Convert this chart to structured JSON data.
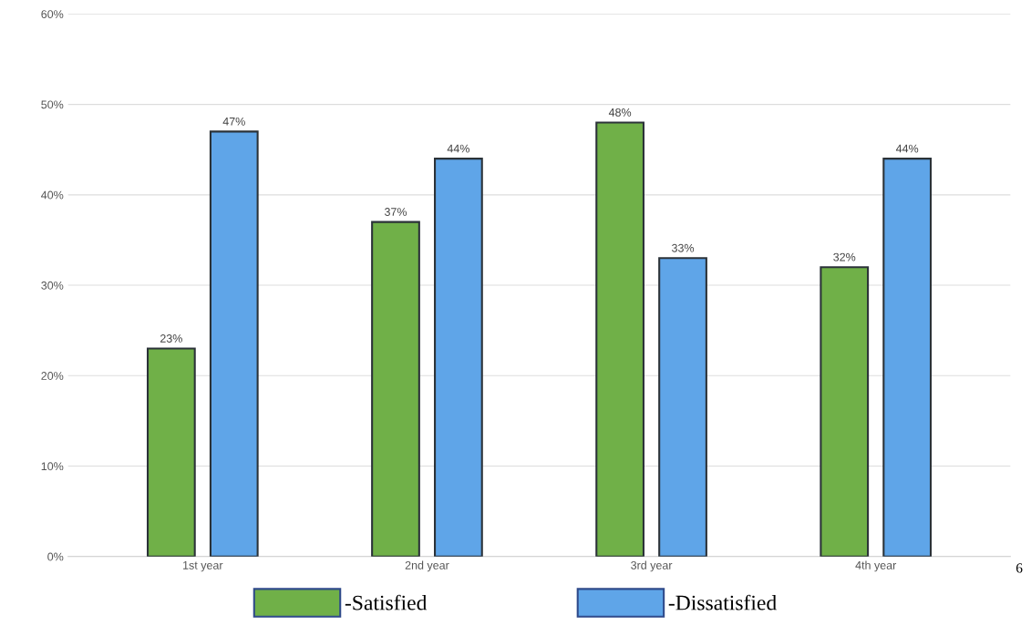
{
  "chart_data": {
    "type": "bar",
    "categories": [
      "1st year",
      "2nd year",
      "3rd year",
      "4th year"
    ],
    "series": [
      {
        "name": "-Satisfied",
        "color": "#70b048",
        "values": [
          23,
          37,
          48,
          32
        ]
      },
      {
        "name": "-Dissatisfied",
        "color": "#5fa5e8",
        "values": [
          47,
          44,
          33,
          44
        ]
      }
    ],
    "ylim": [
      0,
      60
    ],
    "yticks": [
      {
        "value": 0,
        "label": "0%"
      },
      {
        "value": 10,
        "label": "10%"
      },
      {
        "value": 20,
        "label": "20%"
      },
      {
        "value": 30,
        "label": "30%"
      },
      {
        "value": 40,
        "label": "40%"
      },
      {
        "value": 50,
        "label": "50%"
      },
      {
        "value": 60,
        "label": "60%"
      }
    ],
    "value_labels": [
      [
        "23%",
        "37%",
        "48%",
        "32%"
      ],
      [
        "47%",
        "44%",
        "33%",
        "44%"
      ]
    ],
    "grid": "y",
    "legend": "bottom",
    "annotations": [
      "6"
    ]
  }
}
